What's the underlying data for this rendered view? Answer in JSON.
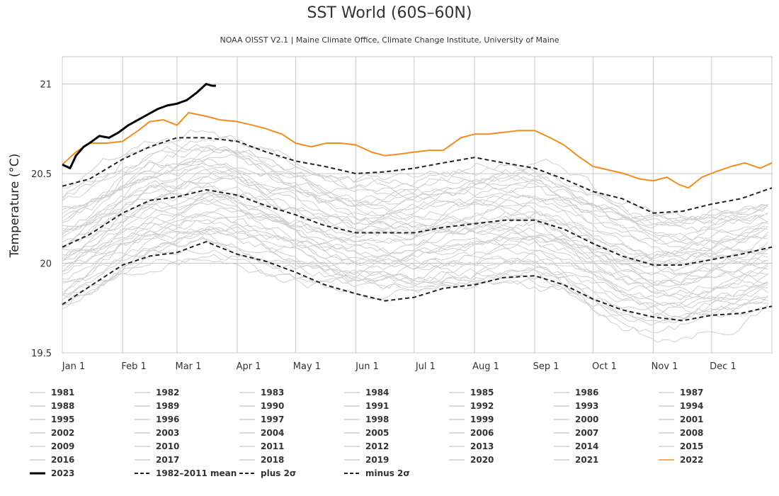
{
  "chart_data": {
    "type": "line",
    "title": "SST World (60S–60N)",
    "subtitle": "NOAA OISST V2.1 | Maine Climate Office, Climate Change Institute, University of Maine",
    "ylabel": "Temperature (°C)",
    "xlabel": "",
    "ylim": [
      19.5,
      21.15
    ],
    "y_ticks": [
      "19.5",
      "20",
      "20.5",
      "21"
    ],
    "x_ticks": [
      "Jan 1",
      "Feb 1",
      "Mar 1",
      "Apr 1",
      "May 1",
      "Jun 1",
      "Jul 1",
      "Aug 1",
      "Sep 1",
      "Oct 1",
      "Nov 1",
      "Dec 1"
    ],
    "x_tick_days": [
      1,
      32,
      60,
      91,
      121,
      152,
      182,
      213,
      244,
      274,
      305,
      335
    ],
    "x_range_days": [
      1,
      366
    ],
    "grid": true,
    "legend_position": "bottom",
    "legend_items": [
      {
        "label": "1981",
        "style": "solid",
        "color": "#cfcfcf"
      },
      {
        "label": "1982",
        "style": "solid",
        "color": "#cfcfcf"
      },
      {
        "label": "1983",
        "style": "solid",
        "color": "#cfcfcf"
      },
      {
        "label": "1984",
        "style": "solid",
        "color": "#cfcfcf"
      },
      {
        "label": "1985",
        "style": "solid",
        "color": "#cfcfcf"
      },
      {
        "label": "1986",
        "style": "solid",
        "color": "#cfcfcf"
      },
      {
        "label": "1987",
        "style": "solid",
        "color": "#cfcfcf"
      },
      {
        "label": "1988",
        "style": "solid",
        "color": "#cfcfcf"
      },
      {
        "label": "1989",
        "style": "solid",
        "color": "#cfcfcf"
      },
      {
        "label": "1990",
        "style": "solid",
        "color": "#cfcfcf"
      },
      {
        "label": "1991",
        "style": "solid",
        "color": "#cfcfcf"
      },
      {
        "label": "1992",
        "style": "solid",
        "color": "#cfcfcf"
      },
      {
        "label": "1993",
        "style": "solid",
        "color": "#cfcfcf"
      },
      {
        "label": "1994",
        "style": "solid",
        "color": "#cfcfcf"
      },
      {
        "label": "1995",
        "style": "solid",
        "color": "#cfcfcf"
      },
      {
        "label": "1996",
        "style": "solid",
        "color": "#cfcfcf"
      },
      {
        "label": "1997",
        "style": "solid",
        "color": "#cfcfcf"
      },
      {
        "label": "1998",
        "style": "solid",
        "color": "#cfcfcf"
      },
      {
        "label": "1999",
        "style": "solid",
        "color": "#cfcfcf"
      },
      {
        "label": "2000",
        "style": "solid",
        "color": "#cfcfcf"
      },
      {
        "label": "2001",
        "style": "solid",
        "color": "#cfcfcf"
      },
      {
        "label": "2002",
        "style": "solid",
        "color": "#cfcfcf"
      },
      {
        "label": "2003",
        "style": "solid",
        "color": "#cfcfcf"
      },
      {
        "label": "2004",
        "style": "solid",
        "color": "#cfcfcf"
      },
      {
        "label": "2005",
        "style": "solid",
        "color": "#cfcfcf"
      },
      {
        "label": "2006",
        "style": "solid",
        "color": "#cfcfcf"
      },
      {
        "label": "2007",
        "style": "solid",
        "color": "#cfcfcf"
      },
      {
        "label": "2008",
        "style": "solid",
        "color": "#cfcfcf"
      },
      {
        "label": "2009",
        "style": "solid",
        "color": "#cfcfcf"
      },
      {
        "label": "2010",
        "style": "solid",
        "color": "#cfcfcf"
      },
      {
        "label": "2011",
        "style": "solid",
        "color": "#cfcfcf"
      },
      {
        "label": "2012",
        "style": "solid",
        "color": "#cfcfcf"
      },
      {
        "label": "2013",
        "style": "solid",
        "color": "#cfcfcf"
      },
      {
        "label": "2014",
        "style": "solid",
        "color": "#cfcfcf"
      },
      {
        "label": "2015",
        "style": "solid",
        "color": "#cfcfcf"
      },
      {
        "label": "2016",
        "style": "solid",
        "color": "#cfcfcf"
      },
      {
        "label": "2017",
        "style": "solid",
        "color": "#cfcfcf"
      },
      {
        "label": "2018",
        "style": "solid",
        "color": "#cfcfcf"
      },
      {
        "label": "2019",
        "style": "solid",
        "color": "#cfcfcf"
      },
      {
        "label": "2020",
        "style": "solid",
        "color": "#cfcfcf"
      },
      {
        "label": "2021",
        "style": "solid",
        "color": "#cfcfcf"
      },
      {
        "label": "2022",
        "style": "solid",
        "color": "#f28c1e"
      },
      {
        "label": "2023",
        "style": "solid-bold",
        "color": "#000000"
      },
      {
        "label": "1982–2011 mean",
        "style": "dashed",
        "color": "#222222"
      },
      {
        "label": "plus 2σ",
        "style": "dashed",
        "color": "#222222"
      },
      {
        "label": "minus 2σ",
        "style": "dashed",
        "color": "#222222"
      }
    ],
    "series": [
      {
        "name": "1982–2011 mean",
        "style": "dashed",
        "color": "#222222",
        "x": [
          1,
          15,
          32,
          46,
          60,
          75,
          91,
          106,
          121,
          136,
          152,
          167,
          182,
          197,
          213,
          228,
          244,
          259,
          274,
          289,
          305,
          320,
          335,
          350,
          366
        ],
        "y": [
          20.09,
          20.16,
          20.28,
          20.35,
          20.37,
          20.41,
          20.38,
          20.32,
          20.27,
          20.21,
          20.17,
          20.17,
          20.17,
          20.2,
          20.22,
          20.24,
          20.24,
          20.19,
          20.11,
          20.04,
          19.99,
          19.99,
          20.02,
          20.05,
          20.09
        ]
      },
      {
        "name": "plus 2σ",
        "style": "dashed",
        "color": "#222222",
        "x": [
          1,
          15,
          32,
          46,
          60,
          75,
          91,
          106,
          121,
          136,
          152,
          167,
          182,
          197,
          213,
          228,
          244,
          259,
          274,
          289,
          305,
          320,
          335,
          350,
          366
        ],
        "y": [
          20.43,
          20.47,
          20.58,
          20.65,
          20.7,
          20.7,
          20.68,
          20.62,
          20.57,
          20.54,
          20.5,
          20.51,
          20.53,
          20.56,
          20.59,
          20.56,
          20.53,
          20.47,
          20.4,
          20.36,
          20.28,
          20.29,
          20.33,
          20.36,
          20.42
        ]
      },
      {
        "name": "minus 2σ",
        "style": "dashed",
        "color": "#222222",
        "x": [
          1,
          15,
          32,
          46,
          60,
          75,
          91,
          106,
          121,
          136,
          152,
          167,
          182,
          197,
          213,
          228,
          244,
          259,
          274,
          289,
          305,
          320,
          335,
          350,
          366
        ],
        "y": [
          19.77,
          19.87,
          19.99,
          20.04,
          20.06,
          20.12,
          20.05,
          20.01,
          19.95,
          19.88,
          19.83,
          19.79,
          19.81,
          19.86,
          19.88,
          19.92,
          19.93,
          19.88,
          19.8,
          19.74,
          19.7,
          19.68,
          19.71,
          19.72,
          19.76
        ]
      },
      {
        "name": "2022",
        "style": "solid",
        "color": "#f28c1e",
        "x": [
          1,
          8,
          15,
          24,
          32,
          40,
          46,
          53,
          60,
          66,
          75,
          82,
          91,
          99,
          106,
          114,
          121,
          129,
          137,
          144,
          152,
          160,
          167,
          175,
          182,
          190,
          197,
          206,
          213,
          220,
          228,
          236,
          244,
          252,
          259,
          266,
          274,
          282,
          290,
          298,
          305,
          312,
          318,
          323,
          330,
          337,
          345,
          352,
          360,
          366
        ],
        "y": [
          20.55,
          20.62,
          20.67,
          20.67,
          20.68,
          20.74,
          20.79,
          20.8,
          20.77,
          20.84,
          20.82,
          20.8,
          20.79,
          20.77,
          20.75,
          20.72,
          20.67,
          20.65,
          20.67,
          20.67,
          20.66,
          20.62,
          20.6,
          20.61,
          20.62,
          20.63,
          20.63,
          20.7,
          20.72,
          20.72,
          20.73,
          20.74,
          20.74,
          20.7,
          20.66,
          20.6,
          20.54,
          20.52,
          20.5,
          20.47,
          20.46,
          20.48,
          20.44,
          20.42,
          20.48,
          20.51,
          20.54,
          20.56,
          20.53,
          20.56
        ]
      },
      {
        "name": "2023",
        "style": "solid-bold",
        "color": "#000000",
        "x": [
          1,
          5,
          8,
          12,
          15,
          20,
          25,
          30,
          35,
          40,
          45,
          50,
          55,
          60,
          65,
          70,
          75,
          78,
          80
        ],
        "y": [
          20.55,
          20.53,
          20.6,
          20.65,
          20.67,
          20.71,
          20.7,
          20.73,
          20.77,
          20.8,
          20.83,
          20.86,
          20.88,
          20.89,
          20.91,
          20.95,
          21.0,
          20.99,
          20.99
        ]
      }
    ]
  },
  "colors": {
    "background": "#ffffff",
    "grid": "#c8c8c8",
    "other_years": "#cfcfcf",
    "year_2022": "#f28c1e",
    "year_2023": "#000000",
    "climatology": "#222222"
  }
}
